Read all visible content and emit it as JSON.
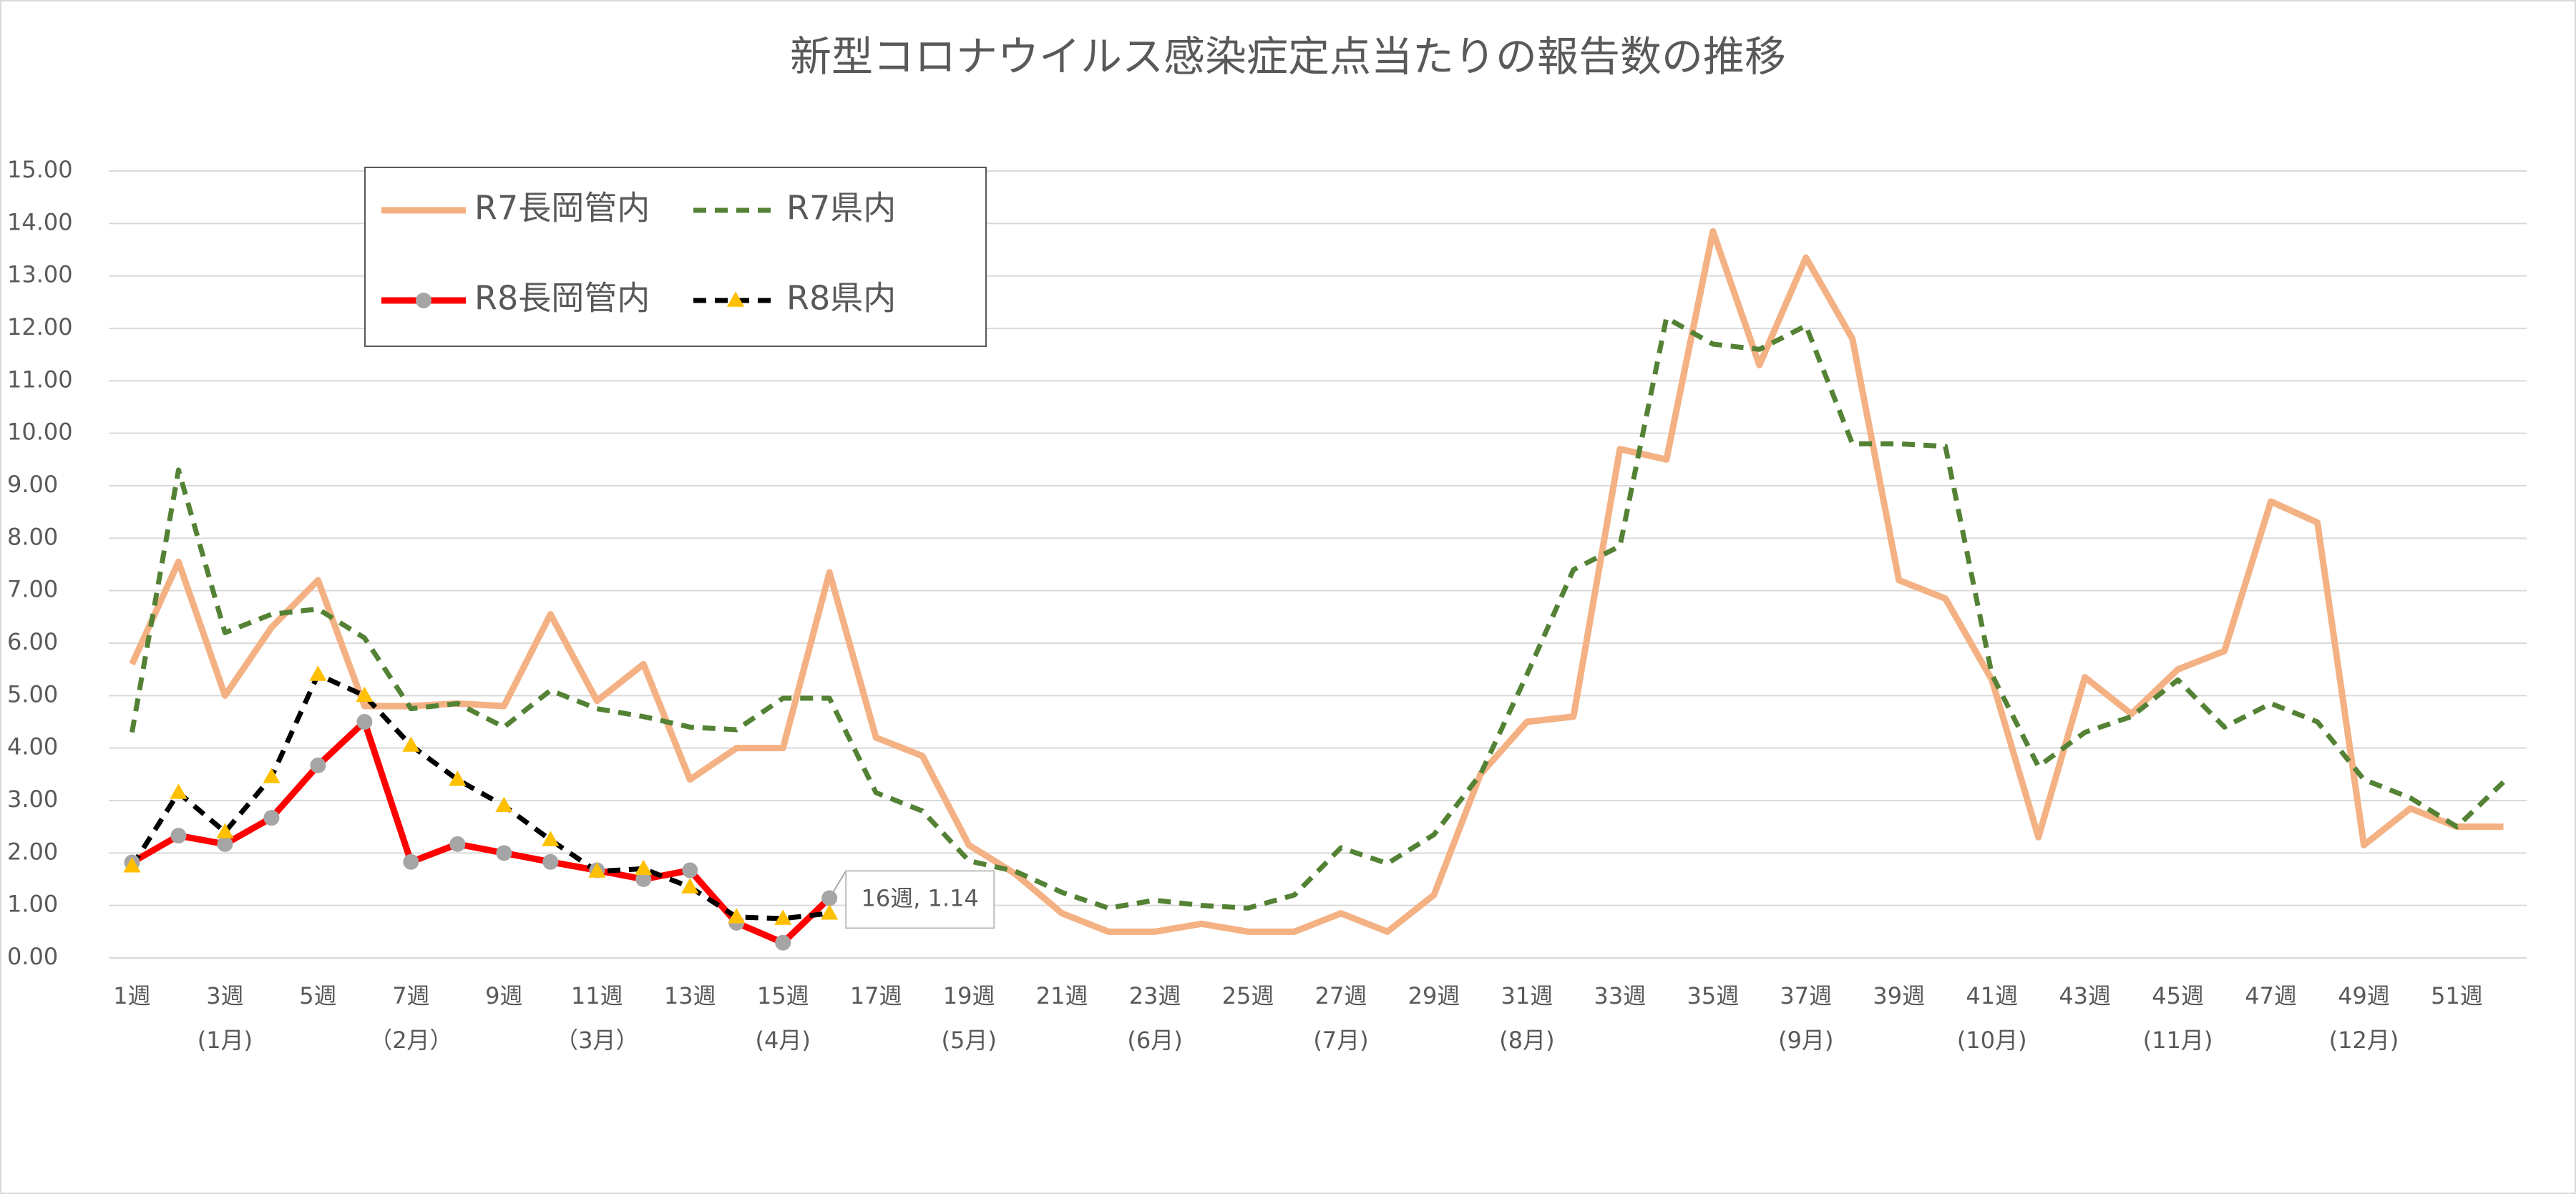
{
  "chart_data": {
    "type": "line",
    "title": "新型コロナウイルス感染症定点当たりの報告数の推移",
    "categories": [
      "1週",
      null,
      "3週",
      null,
      "5週",
      null,
      "7週",
      null,
      "9週",
      null,
      "11週",
      null,
      "13週",
      null,
      "15週",
      null,
      "17週",
      null,
      "19週",
      null,
      "21週",
      null,
      "23週",
      null,
      "25週",
      null,
      "27週",
      null,
      "29週",
      null,
      "31週",
      null,
      "33週",
      null,
      "35週",
      null,
      "37週",
      null,
      "39週",
      null,
      "41週",
      null,
      "43週",
      null,
      "45週",
      null,
      "47週",
      null,
      "49週",
      null,
      "51週",
      null
    ],
    "month_labels": [
      null,
      null,
      "(1月)",
      null,
      null,
      null,
      "（2月）",
      null,
      null,
      null,
      "（3月）",
      null,
      null,
      null,
      "(4月)",
      null,
      null,
      null,
      "(5月)",
      null,
      null,
      null,
      "(6月)",
      null,
      null,
      null,
      "(7月)",
      null,
      null,
      null,
      "(8月)",
      null,
      null,
      null,
      null,
      null,
      "(9月)",
      null,
      null,
      null,
      "(10月)",
      null,
      null,
      null,
      "(11月)",
      null,
      null,
      null,
      "(12月)",
      null,
      null,
      null
    ],
    "ylim": [
      0,
      15
    ],
    "yticks": [
      {
        "value": 0,
        "label": "0.00"
      },
      {
        "value": 1,
        "label": "1.00"
      },
      {
        "value": 2,
        "label": "2.00"
      },
      {
        "value": 3,
        "label": "3.00"
      },
      {
        "value": 4,
        "label": "4.00"
      },
      {
        "value": 5,
        "label": "5.00"
      },
      {
        "value": 6,
        "label": "6.00"
      },
      {
        "value": 7,
        "label": "7.00"
      },
      {
        "value": 8,
        "label": "8.00"
      },
      {
        "value": 9,
        "label": "9.00"
      },
      {
        "value": 10,
        "label": "10.00"
      },
      {
        "value": 11,
        "label": "11.00"
      },
      {
        "value": 12,
        "label": "12.00"
      },
      {
        "value": 13,
        "label": "13.00"
      },
      {
        "value": 14,
        "label": "14.00"
      },
      {
        "value": 15,
        "label": "15.00"
      }
    ],
    "grid": true,
    "legend": "upper left",
    "series": [
      {
        "name": "R7長岡管内",
        "color": "#f4b183",
        "dash": false,
        "marker": null,
        "values": [
          5.6,
          7.55,
          5.0,
          6.3,
          7.2,
          4.8,
          4.8,
          4.85,
          4.8,
          6.55,
          4.9,
          5.6,
          3.4,
          4.0,
          4.0,
          7.35,
          4.2,
          3.85,
          2.15,
          1.6,
          0.85,
          0.5,
          0.5,
          0.65,
          0.5,
          0.5,
          0.85,
          0.5,
          1.2,
          3.5,
          4.5,
          4.6,
          9.7,
          9.5,
          13.85,
          11.3,
          13.35,
          11.8,
          7.2,
          6.85,
          5.3,
          2.3,
          5.35,
          4.65,
          5.5,
          5.85,
          8.7,
          8.3,
          2.15,
          2.85,
          2.5,
          2.5
        ]
      },
      {
        "name": "R7県内",
        "color": "#548235",
        "dash": true,
        "marker": null,
        "values": [
          4.3,
          9.3,
          6.2,
          6.55,
          6.65,
          6.1,
          4.75,
          4.85,
          4.4,
          5.1,
          4.75,
          4.6,
          4.4,
          4.35,
          4.95,
          4.95,
          3.15,
          2.8,
          1.85,
          1.65,
          1.25,
          0.95,
          1.1,
          1.0,
          0.95,
          1.2,
          2.1,
          1.8,
          2.35,
          3.5,
          5.4,
          7.4,
          7.85,
          12.2,
          11.7,
          11.6,
          12.05,
          9.8,
          9.8,
          9.75,
          5.4,
          3.65,
          4.3,
          4.6,
          5.3,
          4.4,
          4.85,
          4.5,
          3.4,
          3.05,
          2.5,
          3.35
        ]
      },
      {
        "name": "R8長岡管内",
        "color": "#ff0000",
        "dash": false,
        "marker": "circle",
        "marker_color": "#a5a5a5",
        "values": [
          1.82,
          2.33,
          2.17,
          2.67,
          3.67,
          4.5,
          1.83,
          2.17,
          2.0,
          1.83,
          1.67,
          1.5,
          1.67,
          0.67,
          0.29,
          1.14,
          null,
          null,
          null,
          null,
          null,
          null,
          null,
          null,
          null,
          null,
          null,
          null,
          null,
          null,
          null,
          null,
          null,
          null,
          null,
          null,
          null,
          null,
          null,
          null,
          null,
          null,
          null,
          null,
          null,
          null,
          null,
          null,
          null,
          null,
          null,
          null
        ],
        "value_labels": [
          null,
          null,
          null,
          null,
          null,
          null,
          null,
          null,
          null,
          null,
          null,
          null,
          null,
          null,
          null,
          "16週, 1.14",
          null,
          null,
          null,
          null,
          null,
          null,
          null,
          null,
          null,
          null,
          null,
          null,
          null,
          null,
          null,
          null,
          null,
          null,
          null,
          null,
          null,
          null,
          null,
          null,
          null,
          null,
          null,
          null,
          null,
          null,
          null,
          null,
          null,
          null,
          null,
          null
        ]
      },
      {
        "name": "R8県内",
        "color": "#000000",
        "dash": true,
        "marker": "triangle",
        "marker_color": "#ffc000",
        "values": [
          1.75,
          3.15,
          2.4,
          3.45,
          5.4,
          5.0,
          4.05,
          3.4,
          2.9,
          2.25,
          1.65,
          1.7,
          1.35,
          0.78,
          0.75,
          0.85,
          null,
          null,
          null,
          null,
          null,
          null,
          null,
          null,
          null,
          null,
          null,
          null,
          null,
          null,
          null,
          null,
          null,
          null,
          null,
          null,
          null,
          null,
          null,
          null,
          null,
          null,
          null,
          null,
          null,
          null,
          null,
          null,
          null,
          null,
          null,
          null
        ]
      }
    ]
  }
}
